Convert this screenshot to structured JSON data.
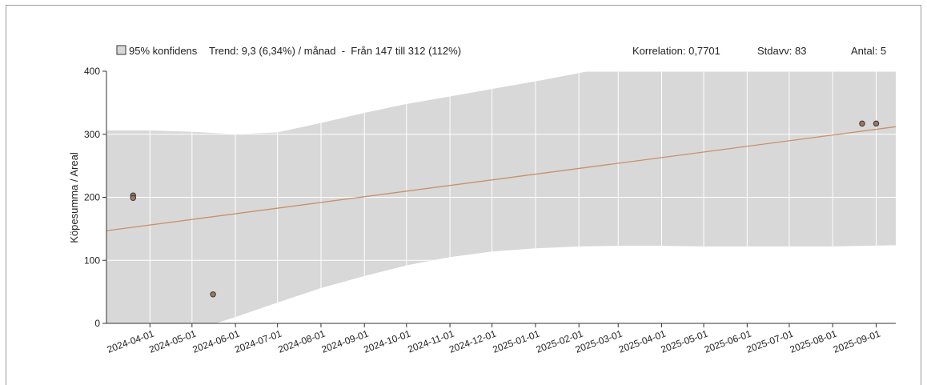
{
  "header": {
    "legend_label": "95% konfidens",
    "trend": "Trend: 9,3 (6,34%) / månad  -  Från 147 till 312 (112%)",
    "correlation": "Korrelation: 0,7701",
    "stdev": "Stdavv: 83",
    "count": "Antal: 5"
  },
  "chart_data": {
    "type": "scatter",
    "ylabel": "Köpesumma / Areal",
    "xlabel": "",
    "ylim": [
      0,
      400
    ],
    "yticks": [
      0,
      100,
      200,
      300,
      400
    ],
    "xlim": [
      "2024-03-01",
      "2025-09-15"
    ],
    "xticks": [
      "2024-04-01",
      "2024-05-01",
      "2024-06-01",
      "2024-07-01",
      "2024-08-01",
      "2024-09-01",
      "2024-10-01",
      "2024-11-01",
      "2024-12-01",
      "2025-01-01",
      "2025-02-01",
      "2025-03-01",
      "2025-04-01",
      "2025-05-01",
      "2025-06-01",
      "2025-07-01",
      "2025-08-01",
      "2025-09-01"
    ],
    "grid": true,
    "points": [
      {
        "x": "2024-03-20",
        "y": 203
      },
      {
        "x": "2024-03-20",
        "y": 199
      },
      {
        "x": "2024-05-16",
        "y": 46
      },
      {
        "x": "2025-08-22",
        "y": 317
      },
      {
        "x": "2025-09-01",
        "y": 317
      }
    ],
    "trend_line": {
      "from": {
        "x": "2024-03-01",
        "y": 147
      },
      "to": {
        "x": "2025-09-15",
        "y": 312
      }
    },
    "confidence_band": {
      "x": [
        "2024-03-01",
        "2024-04-01",
        "2024-05-01",
        "2024-06-01",
        "2024-07-01",
        "2024-08-01",
        "2024-09-01",
        "2024-10-01",
        "2024-11-01",
        "2024-12-01",
        "2025-01-01",
        "2025-02-01",
        "2025-03-01",
        "2025-04-01",
        "2025-05-01",
        "2025-06-01",
        "2025-07-01",
        "2025-08-01",
        "2025-09-15"
      ],
      "upper": [
        306,
        306,
        304,
        300,
        303,
        318,
        334,
        348,
        360,
        372,
        384,
        397,
        410,
        424,
        438,
        452,
        466,
        480,
        498
      ],
      "lower": [
        -26,
        -20,
        -12,
        10,
        33,
        56,
        75,
        92,
        105,
        114,
        119,
        122,
        123,
        123,
        122,
        122,
        122,
        122,
        124
      ]
    },
    "colors": {
      "band": "#d8d8d8",
      "trend": "#c8906a",
      "point_fill": "#a07860",
      "point_stroke": "#333333",
      "grid": "#ffffff",
      "axis": "#333333"
    }
  }
}
